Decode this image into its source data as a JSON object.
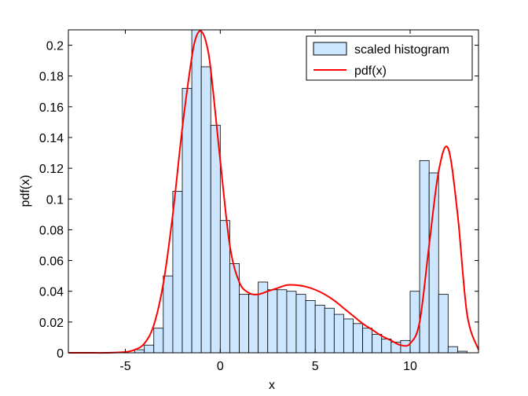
{
  "chart_data": {
    "type": "bar",
    "title": "",
    "xlabel": "x",
    "ylabel": "pdf(x)",
    "xlim": [
      -8,
      13.6
    ],
    "ylim": [
      0,
      0.21
    ],
    "xticks": [
      -5,
      0,
      5,
      10
    ],
    "yticks": [
      0,
      0.02,
      0.04,
      0.06,
      0.08,
      0.1,
      0.12,
      0.14,
      0.16,
      0.18,
      0.2
    ],
    "grid": false,
    "legend_position": "top-right",
    "colors": {
      "bar_fill": "#cce6ff",
      "bar_edge": "#000000",
      "line": "#ff0000"
    },
    "series": [
      {
        "name": "scaled histogram",
        "kind": "histogram",
        "bin_width": 0.5,
        "bin_left_edges": [
          -4.5,
          -4.0,
          -3.5,
          -3.0,
          -2.5,
          -2.0,
          -1.5,
          -1.0,
          -0.5,
          0.0,
          0.5,
          1.0,
          1.5,
          2.0,
          2.5,
          3.0,
          3.5,
          4.0,
          4.5,
          5.0,
          5.5,
          6.0,
          6.5,
          7.0,
          7.5,
          8.0,
          8.5,
          9.0,
          9.5,
          10.0,
          10.5,
          11.0,
          11.5,
          12.0,
          12.5,
          13.0
        ],
        "values": [
          0.002,
          0.005,
          0.016,
          0.05,
          0.105,
          0.172,
          0.21,
          0.186,
          0.148,
          0.086,
          0.058,
          0.038,
          0.038,
          0.046,
          0.041,
          0.041,
          0.04,
          0.038,
          0.034,
          0.031,
          0.029,
          0.025,
          0.022,
          0.019,
          0.016,
          0.012,
          0.009,
          0.007,
          0.008,
          0.04,
          0.125,
          0.117,
          0.038,
          0.004,
          0.001,
          0.0
        ]
      },
      {
        "name": "pdf(x)",
        "kind": "line",
        "x": [
          -8,
          -7,
          -6,
          -5,
          -4.5,
          -4,
          -3.5,
          -3,
          -2.5,
          -2,
          -1.5,
          -1.25,
          -1,
          -0.75,
          -0.5,
          0,
          0.5,
          1,
          1.5,
          2,
          2.5,
          3,
          3.5,
          4,
          4.5,
          5,
          5.5,
          6,
          6.5,
          7,
          7.5,
          8,
          8.5,
          9,
          9.5,
          10,
          10.5,
          11,
          11.5,
          12,
          12.5,
          13,
          13.6
        ],
        "y": [
          0.0,
          0.0,
          0.0,
          0.0005,
          0.002,
          0.006,
          0.018,
          0.045,
          0.09,
          0.146,
          0.192,
          0.206,
          0.209,
          0.202,
          0.184,
          0.125,
          0.07,
          0.046,
          0.039,
          0.038,
          0.04,
          0.042,
          0.044,
          0.044,
          0.043,
          0.041,
          0.038,
          0.034,
          0.029,
          0.024,
          0.019,
          0.015,
          0.011,
          0.008,
          0.005,
          0.006,
          0.02,
          0.07,
          0.118,
          0.133,
          0.09,
          0.025,
          0.002
        ]
      }
    ]
  }
}
